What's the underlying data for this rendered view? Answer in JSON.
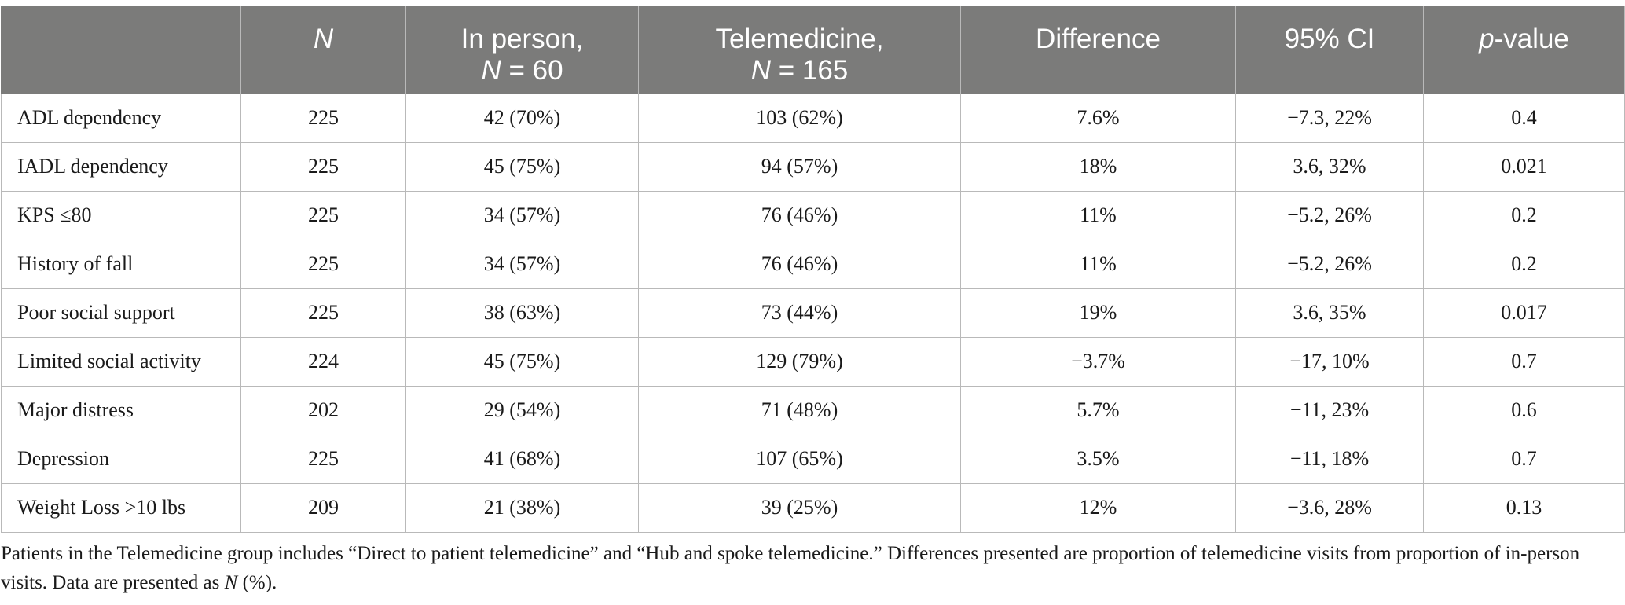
{
  "table": {
    "headers": {
      "row_label": "",
      "n": "N",
      "in_person_line1": "In person,",
      "in_person_n_symbol": "N",
      "in_person_n_value": " = 60",
      "tele_line1": "Telemedicine,",
      "tele_n_symbol": "N",
      "tele_n_value": " = 165",
      "difference": "Difference",
      "ci": "95% CI",
      "p_symbol": "p",
      "p_suffix": "-value"
    },
    "rows": [
      {
        "label": "ADL dependency",
        "n": "225",
        "in_person": "42 (70%)",
        "telemedicine": "103 (62%)",
        "difference": "7.6%",
        "ci": "−7.3, 22%",
        "p": "0.4"
      },
      {
        "label": "IADL dependency",
        "n": "225",
        "in_person": "45 (75%)",
        "telemedicine": "94 (57%)",
        "difference": "18%",
        "ci": "3.6, 32%",
        "p": "0.021"
      },
      {
        "label": "KPS ≤80",
        "n": "225",
        "in_person": "34 (57%)",
        "telemedicine": "76 (46%)",
        "difference": "11%",
        "ci": "−5.2, 26%",
        "p": "0.2"
      },
      {
        "label": "History of fall",
        "n": "225",
        "in_person": "34 (57%)",
        "telemedicine": "76 (46%)",
        "difference": "11%",
        "ci": "−5.2, 26%",
        "p": "0.2"
      },
      {
        "label": "Poor social support",
        "n": "225",
        "in_person": "38 (63%)",
        "telemedicine": "73 (44%)",
        "difference": "19%",
        "ci": "3.6, 35%",
        "p": "0.017"
      },
      {
        "label": "Limited social activity",
        "n": "224",
        "in_person": "45 (75%)",
        "telemedicine": "129 (79%)",
        "difference": "−3.7%",
        "ci": "−17, 10%",
        "p": "0.7"
      },
      {
        "label": "Major distress",
        "n": "202",
        "in_person": "29 (54%)",
        "telemedicine": "71 (48%)",
        "difference": "5.7%",
        "ci": "−11, 23%",
        "p": "0.6"
      },
      {
        "label": "Depression",
        "n": "225",
        "in_person": "41 (68%)",
        "telemedicine": "107 (65%)",
        "difference": "3.5%",
        "ci": "−11, 18%",
        "p": "0.7"
      },
      {
        "label": "Weight Loss >10 lbs",
        "n": "209",
        "in_person": "21 (38%)",
        "telemedicine": "39 (25%)",
        "difference": "12%",
        "ci": "−3.6, 28%",
        "p": "0.13"
      }
    ]
  },
  "footnote": {
    "text_before_italic": "Patients in the Telemedicine group includes “Direct to patient telemedicine” and “Hub and spoke telemedicine.” Differences presented are proportion of telemedicine visits from proportion of in-person visits. Data are presented as ",
    "italic": "N",
    "text_after_italic": " (%)."
  },
  "colors": {
    "header_background": "#7b7b7a",
    "header_text": "#ffffff",
    "grid_lines": "#b9b9b9"
  }
}
